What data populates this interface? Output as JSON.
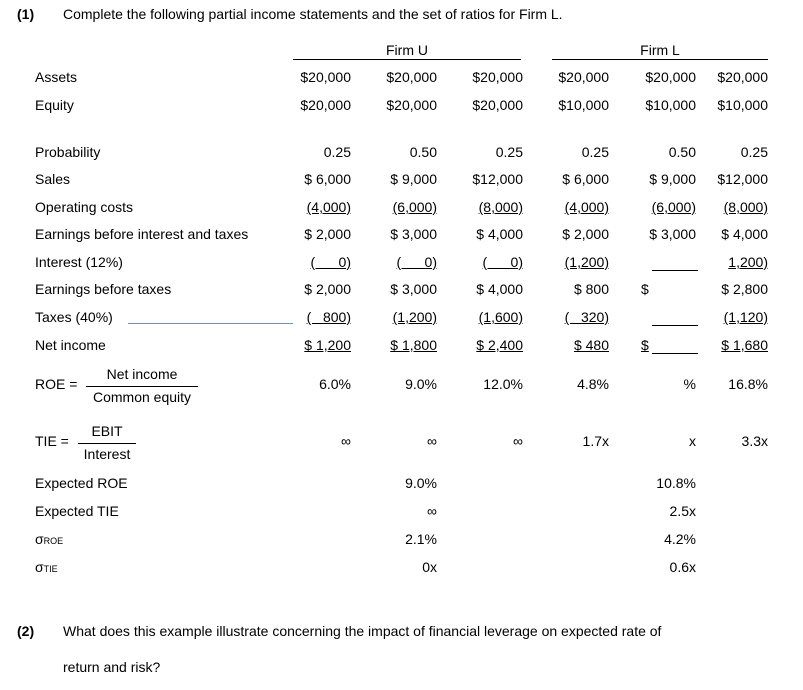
{
  "q1": {
    "num": "(1)",
    "text": "Complete the following partial income statements and the set of ratios for Firm L."
  },
  "q2": {
    "num": "(2)",
    "line1": "What does this example illustrate concerning the impact of financial leverage on expected rate of",
    "line2": "return and risk?"
  },
  "headers": {
    "firm_u": "Firm U",
    "firm_l": "Firm L"
  },
  "labels": {
    "assets": "Assets",
    "equity": "Equity",
    "probability": "Probability",
    "sales": "Sales",
    "operating_costs": "Operating costs",
    "ebit": "Earnings before interest and taxes",
    "interest": "Interest (12%)",
    "ebt": "Earnings before taxes",
    "taxes": "Taxes (40%)",
    "net_income": "Net income",
    "roe": "ROE =",
    "roe_num": "Net income",
    "roe_den": "Common equity",
    "tie": "TIE =",
    "tie_num": "EBIT",
    "tie_den": "Interest",
    "exp_roe": "Expected ROE",
    "exp_tie": "Expected TIE",
    "sigma_roe_sym": "σ",
    "sigma_roe_sub": "ROE",
    "sigma_tie_sym": "σ",
    "sigma_tie_sub": "TIE"
  },
  "rows": {
    "assets": [
      "$20,000",
      "$20,000",
      "$20,000",
      "$20,000",
      "$20,000",
      "$20,000"
    ],
    "equity": [
      "$20,000",
      "$20,000",
      "$20,000",
      "$10,000",
      "$10,000",
      "$10,000"
    ],
    "probability": [
      "0.25",
      "0.50",
      "0.25",
      "0.25",
      "0.50",
      "0.25"
    ],
    "sales": [
      "$ 6,000",
      "$ 9,000",
      "$12,000",
      "$ 6,000",
      "$ 9,000",
      "$12,000"
    ],
    "operating_costs": [
      "(4,000)",
      "(6,000)",
      "(8,000)",
      "(4,000)",
      "(6,000)",
      "(8,000)"
    ],
    "ebit": [
      "$ 2,000",
      "$ 3,000",
      "$ 4,000",
      "$ 2,000",
      "$ 3,000",
      "$ 4,000"
    ],
    "interest": [
      "(      0)",
      "(      0)",
      "(      0)",
      "(1,200)",
      "",
      "1,200)"
    ],
    "ebt": [
      "$ 2,000",
      "$ 3,000",
      "$ 4,000",
      "$ 800",
      "$",
      "$ 2,800"
    ],
    "taxes": [
      "(   800)",
      "(1,200)",
      "(1,600)",
      "(   320)",
      "",
      "(1,120)"
    ],
    "net_income": [
      "$ 1,200",
      "$ 1,800",
      "$ 2,400",
      "$ 480",
      "$",
      "$ 1,680"
    ],
    "roe": [
      "6.0%",
      "9.0%",
      "12.0%",
      "4.8%",
      "%",
      "16.8%"
    ],
    "tie": [
      "∞",
      "∞",
      "∞",
      "1.7x",
      "x",
      "3.3x"
    ]
  },
  "summary": {
    "u": {
      "exp_roe": "9.0%",
      "exp_tie": "∞",
      "sigma_roe": "2.1%",
      "sigma_tie": "0x"
    },
    "l": {
      "exp_roe": "10.8%",
      "exp_tie": "2.5x",
      "sigma_roe": "4.2%",
      "sigma_tie": "0.6x"
    }
  }
}
